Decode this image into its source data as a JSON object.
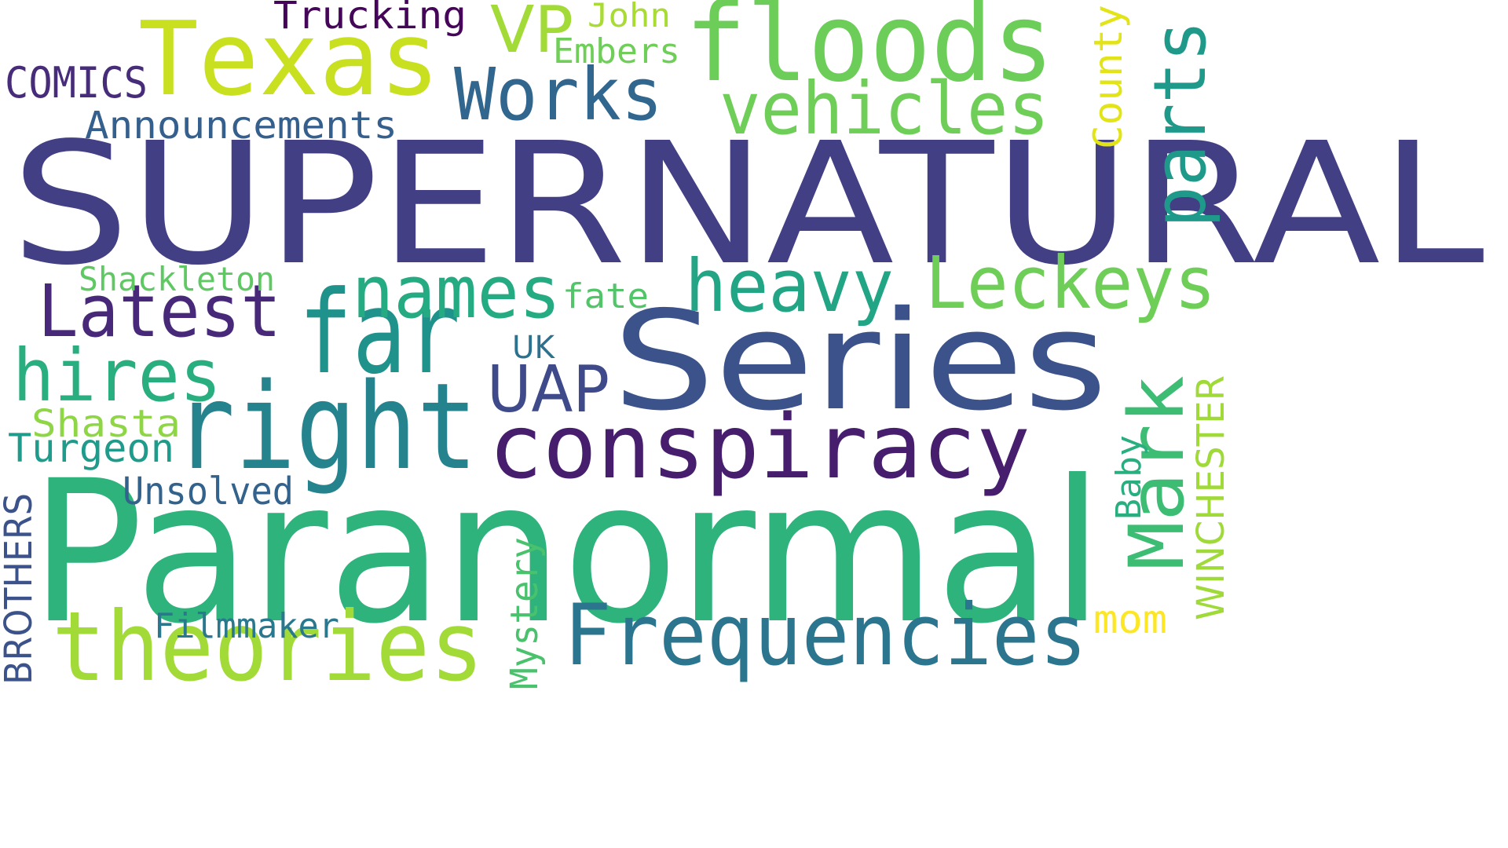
{
  "word_cloud": {
    "words": [
      {
        "id": "supernatural",
        "text": "SUPERNATURAL",
        "color": "#423f85"
      },
      {
        "id": "paranormal",
        "text": "Paranormal",
        "color": "#2eb37c"
      },
      {
        "id": "series",
        "text": "Series",
        "color": "#3b528b"
      },
      {
        "id": "texas",
        "text": "Texas",
        "color": "#c8e020"
      },
      {
        "id": "floods",
        "text": "floods",
        "color": "#6cce59"
      },
      {
        "id": "right",
        "text": "right",
        "color": "#25838e"
      },
      {
        "id": "far",
        "text": "far",
        "color": "#20928c"
      },
      {
        "id": "theories",
        "text": "theories",
        "color": "#a2da37"
      },
      {
        "id": "conspiracy",
        "text": "conspiracy",
        "color": "#471d6e"
      },
      {
        "id": "frequencies",
        "text": "Frequencies",
        "color": "#2b758e"
      },
      {
        "id": "vehicles",
        "text": "vehicles",
        "color": "#6ece58"
      },
      {
        "id": "leckeys",
        "text": "Leckeys",
        "color": "#6ece58"
      },
      {
        "id": "works",
        "text": "Works",
        "color": "#31668e"
      },
      {
        "id": "latest",
        "text": "Latest",
        "color": "#482979"
      },
      {
        "id": "names",
        "text": "names",
        "color": "#25ab82"
      },
      {
        "id": "heavy",
        "text": "heavy",
        "color": "#21a585"
      },
      {
        "id": "parts",
        "text": "parts",
        "color": "#1f9a8a"
      },
      {
        "id": "mark",
        "text": "Mark",
        "color": "#3dbc74"
      },
      {
        "id": "hires",
        "text": "hires",
        "color": "#29af7f"
      },
      {
        "id": "uap",
        "text": "UAP",
        "color": "#3e4a89"
      },
      {
        "id": "vp",
        "text": "VP",
        "color": "#a2da37"
      },
      {
        "id": "announcements",
        "text": "Announcements",
        "color": "#355f8d"
      },
      {
        "id": "comics",
        "text": "COMICS",
        "color": "#472c7a"
      },
      {
        "id": "trucking",
        "text": "Trucking",
        "color": "#450559"
      },
      {
        "id": "john",
        "text": "John",
        "color": "#a8db34"
      },
      {
        "id": "embers",
        "text": "Embers",
        "color": "#6ece58"
      },
      {
        "id": "county",
        "text": "County",
        "color": "#e2e418"
      },
      {
        "id": "shackleton",
        "text": "Shackleton",
        "color": "#5ec962"
      },
      {
        "id": "fate",
        "text": "fate",
        "color": "#52c569"
      },
      {
        "id": "uk",
        "text": "UK",
        "color": "#2c718e"
      },
      {
        "id": "shasta",
        "text": "Shasta",
        "color": "#8ed645"
      },
      {
        "id": "turgeon",
        "text": "Turgeon",
        "color": "#1e9b8a"
      },
      {
        "id": "unsolved",
        "text": "Unsolved",
        "color": "#33638d"
      },
      {
        "id": "brothers",
        "text": "BROTHERS",
        "color": "#3b528b"
      },
      {
        "id": "filmmaker",
        "text": "Filmmaker",
        "color": "#2a788e"
      },
      {
        "id": "mystery",
        "text": "Mystery",
        "color": "#4ac16d"
      },
      {
        "id": "baby",
        "text": "Baby",
        "color": "#29af7f"
      },
      {
        "id": "winchester",
        "text": "WINCHESTER",
        "color": "#a0da39"
      },
      {
        "id": "mom",
        "text": "mom",
        "color": "#fde725"
      }
    ]
  }
}
